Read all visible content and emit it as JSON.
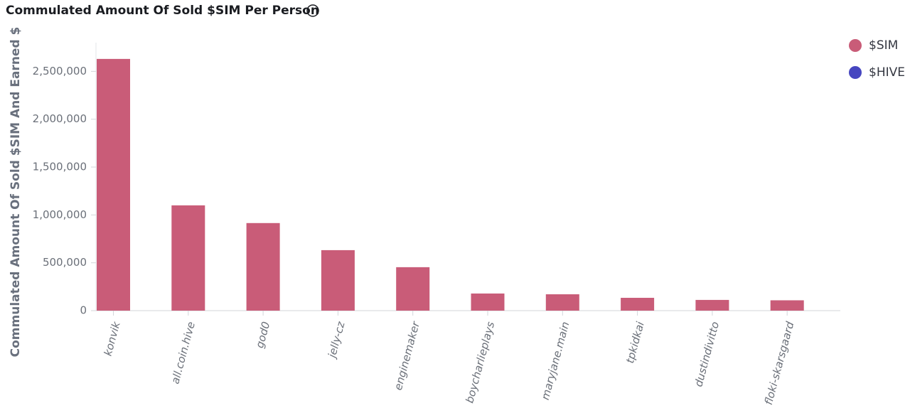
{
  "chart_data": {
    "type": "bar",
    "title": "Commulated Amount Of Sold $SIM Per Person",
    "y_label": "Commulated Amount Of Sold $SIM And Earned $",
    "categories": [
      "konvik",
      "all.coin.hive",
      "god0",
      "jelly-cz",
      "enginemaker",
      "boycharlieplays",
      "maryjane.main",
      "tpkidkai",
      "dustindivitto",
      "floki-skarsgaard"
    ],
    "series": [
      {
        "name": "$SIM",
        "color": "#c95c78",
        "values": [
          2630000,
          1100000,
          915000,
          632000,
          454000,
          179000,
          171000,
          134000,
          112000,
          108000
        ]
      },
      {
        "name": "$HIVE",
        "color": "#4646c0",
        "values": [
          null,
          null,
          null,
          null,
          null,
          null,
          null,
          null,
          null,
          null
        ]
      }
    ],
    "ylim": [
      0,
      2800000
    ],
    "yticks": [
      0,
      {
        "value": 500000,
        "label": "500,000"
      },
      {
        "value": 1000000,
        "label": "1,000,000"
      },
      {
        "value": 1500000,
        "label": "1,500,000"
      },
      {
        "value": 2000000,
        "label": "2,000,000"
      },
      {
        "value": 2500000,
        "label": "2,500,000"
      }
    ],
    "legend": "top-right"
  }
}
